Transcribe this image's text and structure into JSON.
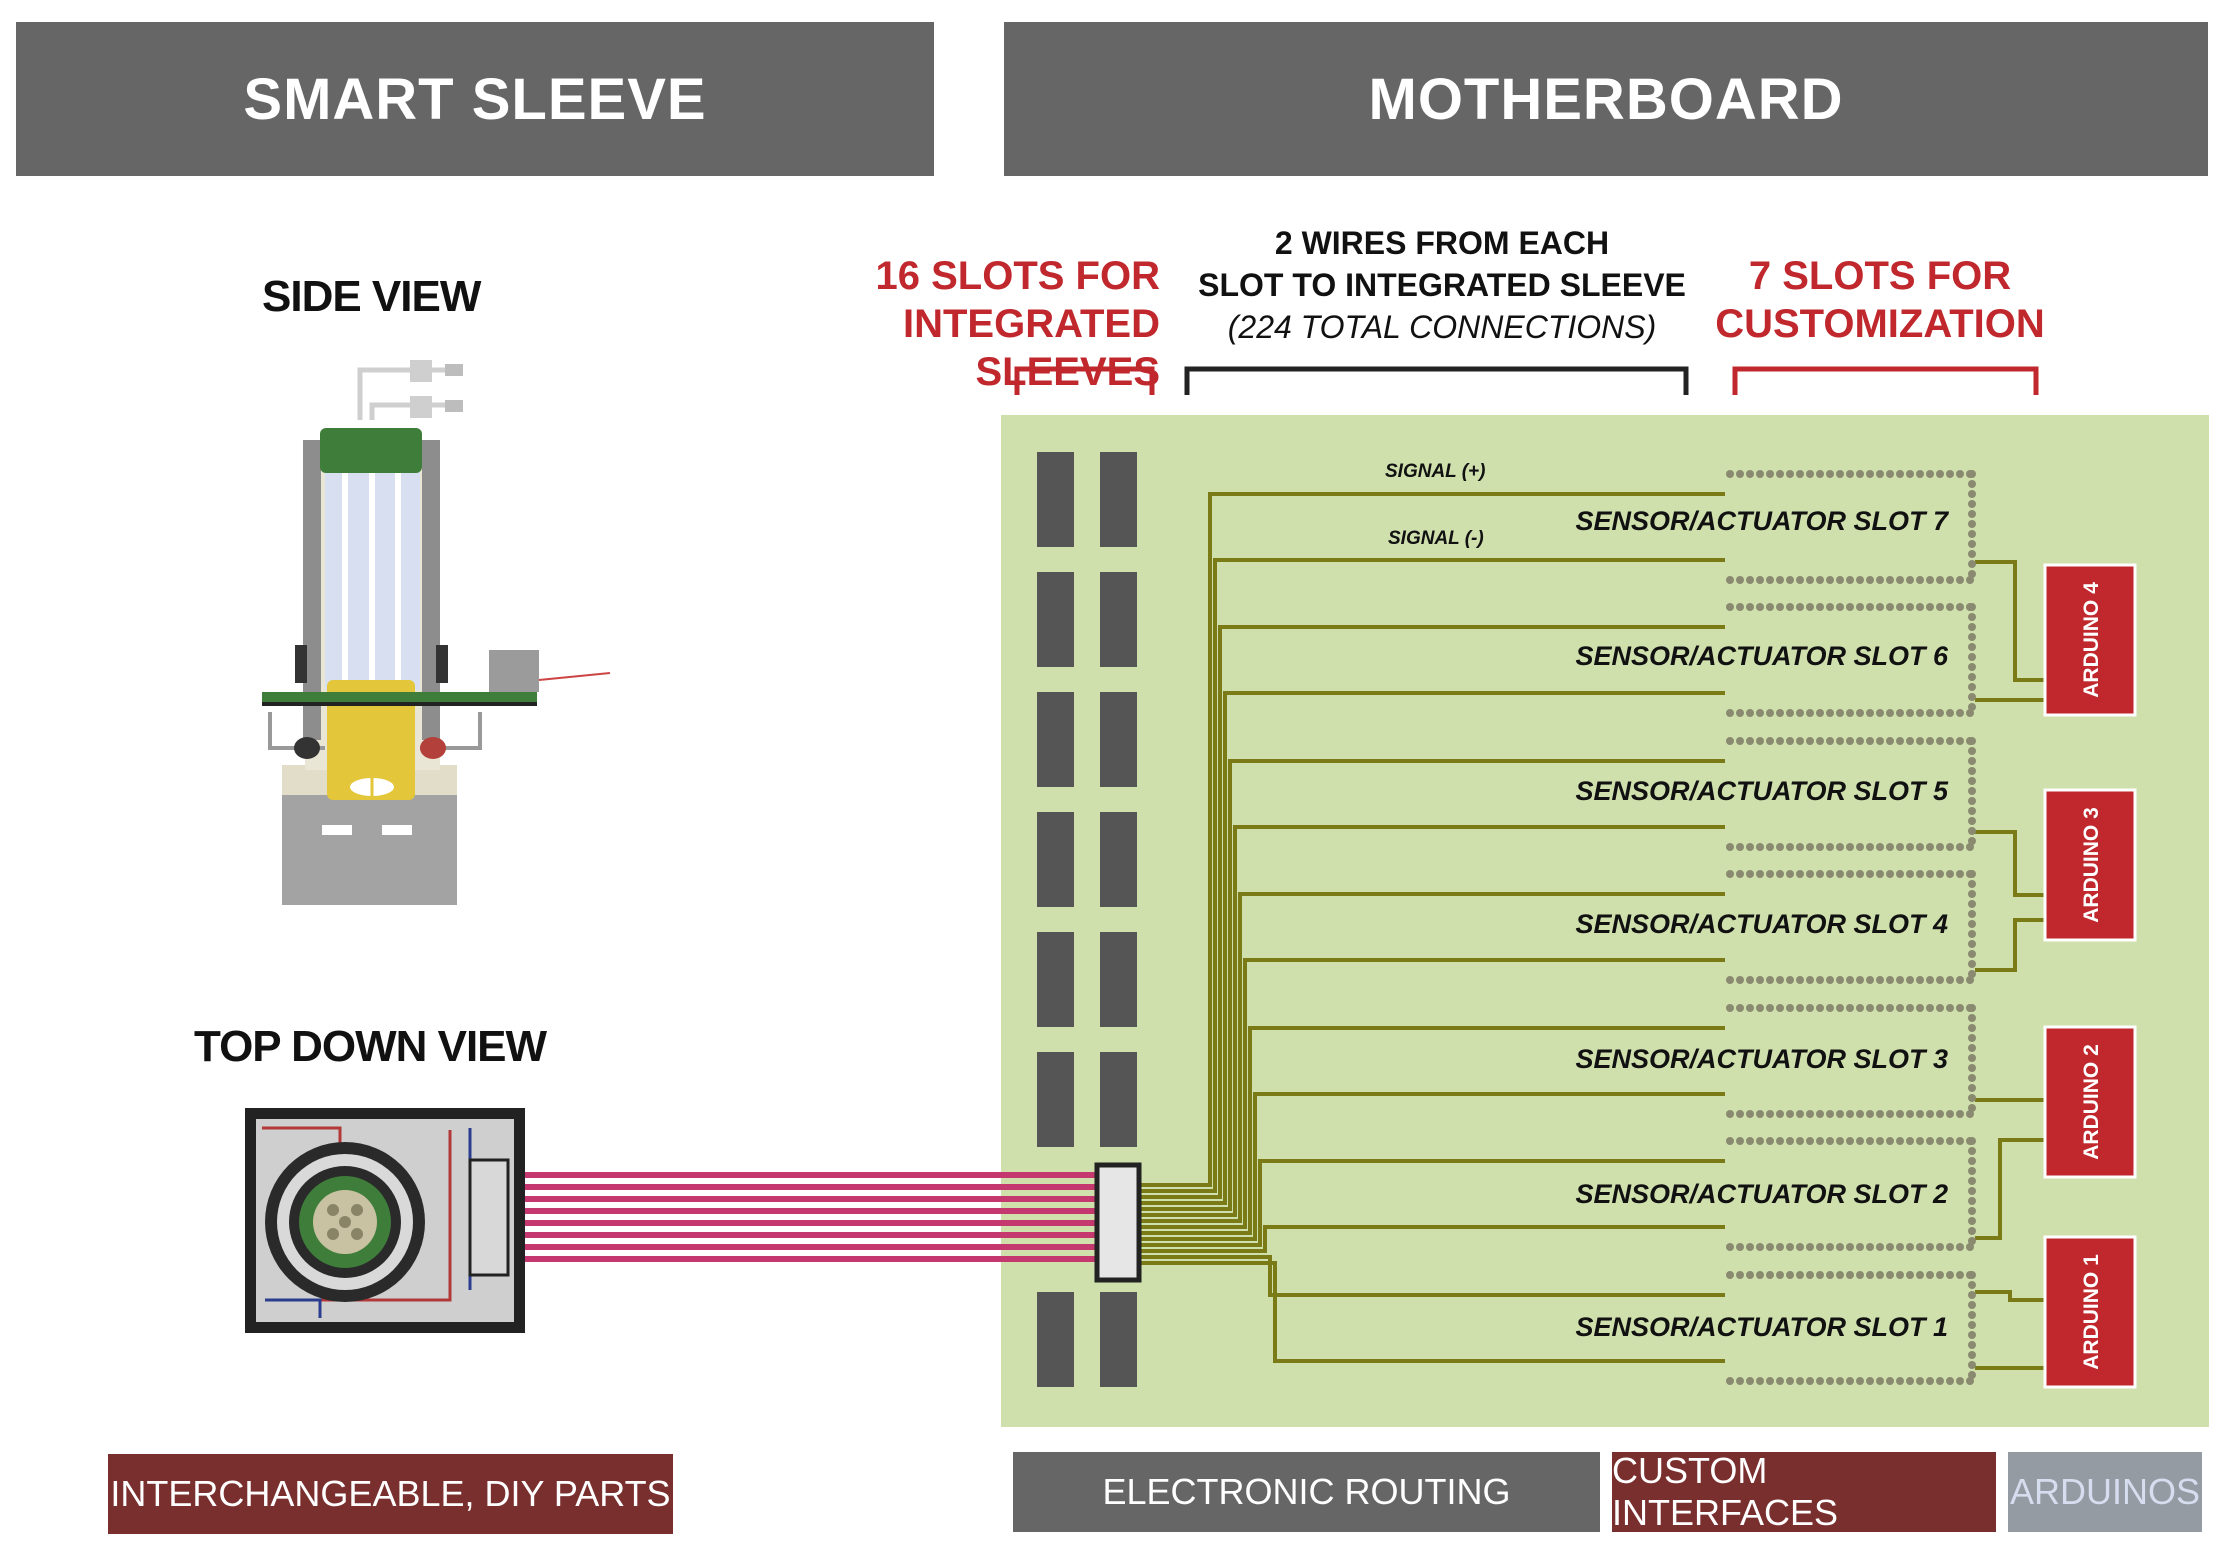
{
  "headers": {
    "left": "SMART SLEEVE",
    "right": "MOTHERBOARD"
  },
  "left": {
    "side_view": "SIDE VIEW",
    "top_view": "TOP DOWN VIEW"
  },
  "annotations": {
    "slots_line1": "16 SLOTS FOR",
    "slots_line2": "INTEGRATED SLEEVES",
    "wires_line1": "2 WIRES FROM EACH",
    "wires_line2": "SLOT TO INTEGRATED SLEEVE",
    "wires_line3": "(224 TOTAL CONNECTIONS)",
    "custom_line1": "7 SLOTS FOR",
    "custom_line2": "CUSTOMIZATION"
  },
  "signals": {
    "plus": "SIGNAL (+)",
    "minus": "SIGNAL (-)"
  },
  "slots": [
    "SENSOR/ACTUATOR SLOT 7",
    "SENSOR/ACTUATOR SLOT 6",
    "SENSOR/ACTUATOR SLOT 5",
    "SENSOR/ACTUATOR SLOT 4",
    "SENSOR/ACTUATOR SLOT 3",
    "SENSOR/ACTUATOR SLOT 2",
    "SENSOR/ACTUATOR SLOT 1"
  ],
  "arduinos": [
    "ARDUINO 4",
    "ARDUINO 3",
    "ARDUINO 2",
    "ARDUINO 1"
  ],
  "footer": {
    "left": "INTERCHANGEABLE, DIY PARTS",
    "routing": "ELECTRONIC ROUTING",
    "custom": "CUSTOM INTERFACES",
    "arduinos": "ARDUINOS"
  },
  "colors": {
    "banner": "#666666",
    "board": "#cfe0ad",
    "wire": "#7a7a16",
    "red": "#c0282d",
    "maroon": "#7a2f2f",
    "ribbon": "#c4386f",
    "arduino_footer": "#949ba3"
  }
}
